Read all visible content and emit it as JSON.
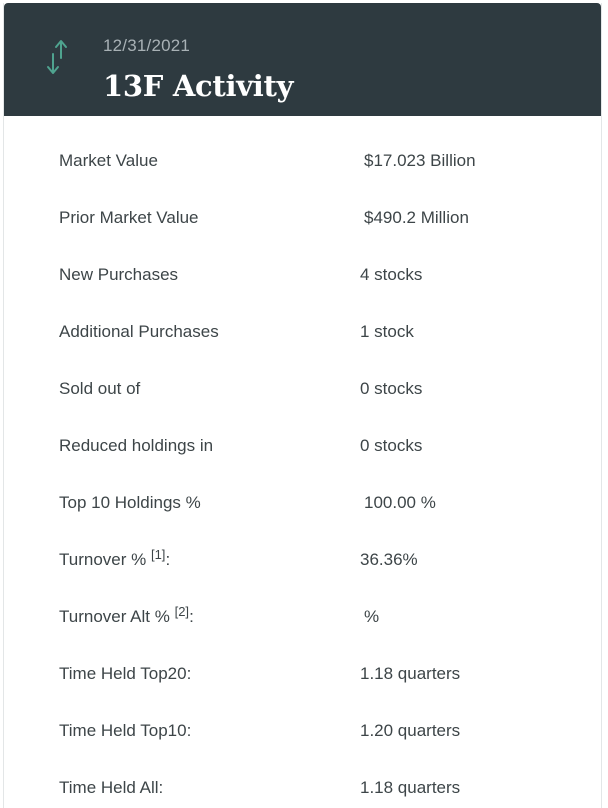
{
  "header": {
    "date": "12/31/2021",
    "title": "13F Activity",
    "icon": "up-down-arrows-icon",
    "background_color": "#2e3a40",
    "icon_color": "#4fa38f"
  },
  "rows": [
    {
      "label": "Market Value",
      "value": "$17.023 Billion"
    },
    {
      "label": "Prior Market Value",
      "value": "$490.2 Million"
    },
    {
      "label": "New Purchases",
      "value": "4 stocks"
    },
    {
      "label": "Additional Purchases",
      "value": "1 stock"
    },
    {
      "label": "Sold out of",
      "value": "0 stocks"
    },
    {
      "label": "Reduced holdings in",
      "value": "0 stocks"
    },
    {
      "label": "Top 10 Holdings %",
      "value": "100.00 %"
    },
    {
      "label": "Turnover %",
      "footnote": "[1]",
      "suffix": ":",
      "value": "36.36%"
    },
    {
      "label": "Turnover Alt %",
      "footnote": "[2]",
      "suffix": ":",
      "value": "%"
    },
    {
      "label": "Time Held Top20:",
      "value": "1.18 quarters"
    },
    {
      "label": "Time Held Top10:",
      "value": "1.20 quarters"
    },
    {
      "label": "Time Held All:",
      "value": "1.18 quarters"
    }
  ]
}
